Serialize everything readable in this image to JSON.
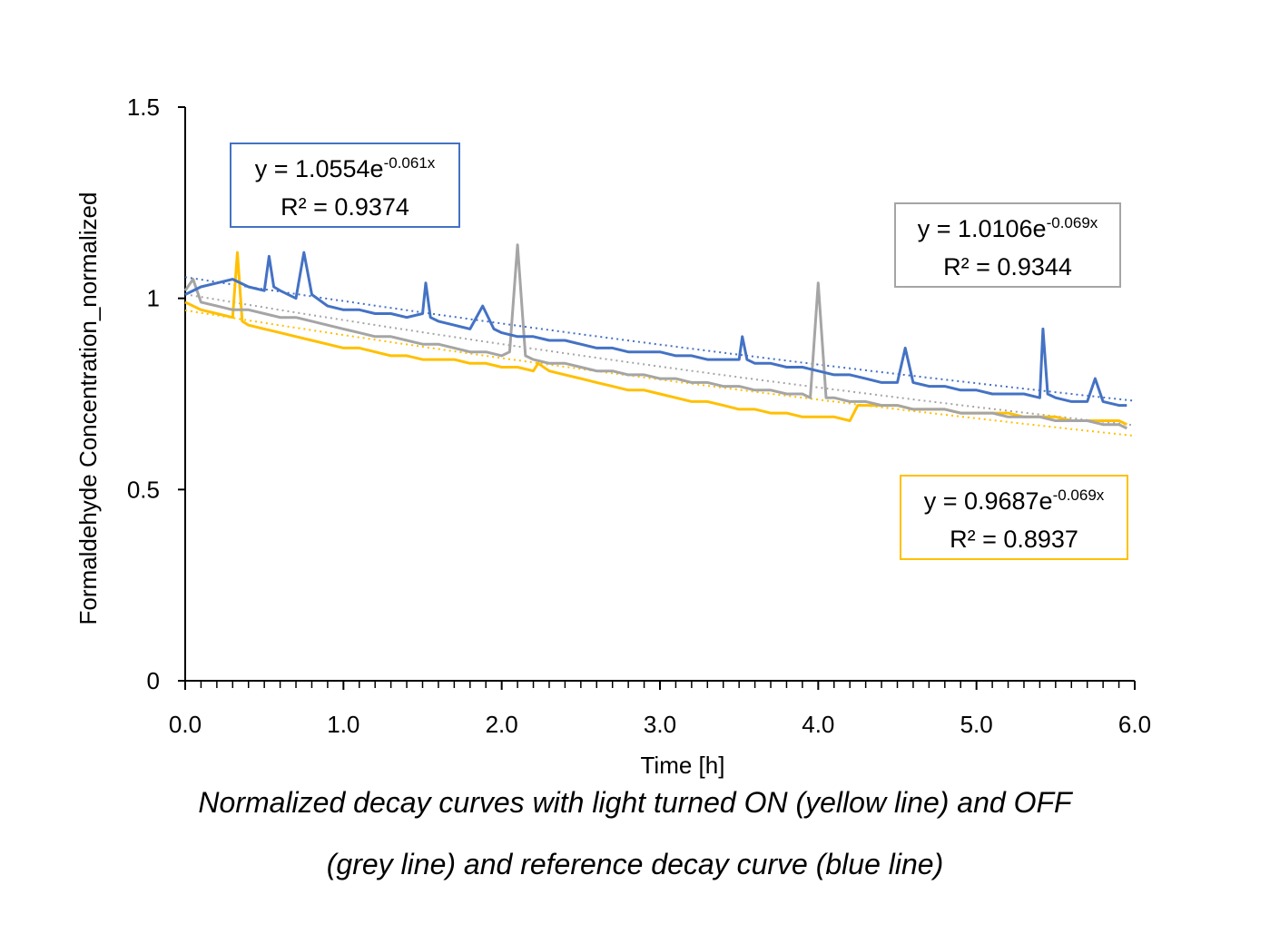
{
  "chart_data": {
    "type": "line",
    "title": "",
    "xlabel": "Time [h]",
    "ylabel": "Formaldehyde Concentration_normalized",
    "xlim": [
      0,
      6
    ],
    "ylim": [
      0,
      1.5
    ],
    "x_ticks": [
      "0.0",
      "1.0",
      "2.0",
      "3.0",
      "4.0",
      "5.0",
      "6.0"
    ],
    "y_ticks": [
      "0",
      "0.5",
      "1",
      "1.5"
    ],
    "grid": false,
    "legend": "none",
    "series": [
      {
        "color": "#4472C4",
        "x": [
          0.0,
          0.1,
          0.2,
          0.3,
          0.4,
          0.5,
          0.53,
          0.56,
          0.6,
          0.7,
          0.75,
          0.8,
          0.9,
          1.0,
          1.1,
          1.2,
          1.3,
          1.4,
          1.5,
          1.52,
          1.55,
          1.6,
          1.7,
          1.8,
          1.88,
          1.95,
          2.0,
          2.1,
          2.2,
          2.3,
          2.4,
          2.5,
          2.6,
          2.7,
          2.8,
          2.9,
          3.0,
          3.1,
          3.2,
          3.3,
          3.4,
          3.5,
          3.52,
          3.55,
          3.6,
          3.7,
          3.8,
          3.9,
          4.0,
          4.1,
          4.2,
          4.3,
          4.4,
          4.5,
          4.55,
          4.6,
          4.7,
          4.8,
          4.9,
          5.0,
          5.1,
          5.2,
          5.3,
          5.4,
          5.42,
          5.45,
          5.5,
          5.6,
          5.7,
          5.75,
          5.8,
          5.9,
          5.95
        ],
        "values": [
          1.01,
          1.03,
          1.04,
          1.05,
          1.03,
          1.02,
          1.11,
          1.03,
          1.02,
          1.0,
          1.12,
          1.01,
          0.98,
          0.97,
          0.97,
          0.96,
          0.96,
          0.95,
          0.96,
          1.04,
          0.95,
          0.94,
          0.93,
          0.92,
          0.98,
          0.92,
          0.91,
          0.9,
          0.9,
          0.89,
          0.89,
          0.88,
          0.87,
          0.87,
          0.86,
          0.86,
          0.86,
          0.85,
          0.85,
          0.84,
          0.84,
          0.84,
          0.9,
          0.84,
          0.83,
          0.83,
          0.82,
          0.82,
          0.81,
          0.8,
          0.8,
          0.79,
          0.78,
          0.78,
          0.87,
          0.78,
          0.77,
          0.77,
          0.76,
          0.76,
          0.75,
          0.75,
          0.75,
          0.74,
          0.92,
          0.75,
          0.74,
          0.73,
          0.73,
          0.79,
          0.73,
          0.72,
          0.72
        ]
      },
      {
        "color": "#A5A5A5",
        "x": [
          0.0,
          0.05,
          0.1,
          0.2,
          0.3,
          0.4,
          0.5,
          0.6,
          0.7,
          0.8,
          0.9,
          1.0,
          1.1,
          1.2,
          1.3,
          1.4,
          1.5,
          1.6,
          1.7,
          1.8,
          1.9,
          2.0,
          2.05,
          2.1,
          2.15,
          2.2,
          2.3,
          2.4,
          2.5,
          2.6,
          2.7,
          2.8,
          2.9,
          3.0,
          3.1,
          3.2,
          3.3,
          3.4,
          3.5,
          3.6,
          3.7,
          3.8,
          3.9,
          3.95,
          4.0,
          4.05,
          4.1,
          4.2,
          4.3,
          4.4,
          4.5,
          4.6,
          4.7,
          4.8,
          4.9,
          5.0,
          5.1,
          5.2,
          5.3,
          5.4,
          5.5,
          5.6,
          5.7,
          5.8,
          5.9,
          5.95
        ],
        "values": [
          1.02,
          1.05,
          0.99,
          0.98,
          0.97,
          0.97,
          0.96,
          0.95,
          0.95,
          0.94,
          0.93,
          0.92,
          0.91,
          0.9,
          0.9,
          0.89,
          0.88,
          0.88,
          0.87,
          0.86,
          0.86,
          0.85,
          0.86,
          1.14,
          0.85,
          0.84,
          0.83,
          0.83,
          0.82,
          0.81,
          0.81,
          0.8,
          0.8,
          0.79,
          0.79,
          0.78,
          0.78,
          0.77,
          0.77,
          0.76,
          0.76,
          0.75,
          0.75,
          0.74,
          1.04,
          0.74,
          0.74,
          0.73,
          0.73,
          0.72,
          0.72,
          0.71,
          0.71,
          0.71,
          0.7,
          0.7,
          0.7,
          0.69,
          0.69,
          0.69,
          0.68,
          0.68,
          0.68,
          0.67,
          0.67,
          0.66
        ]
      },
      {
        "color": "#FFC000",
        "x": [
          0.0,
          0.1,
          0.2,
          0.3,
          0.33,
          0.36,
          0.4,
          0.5,
          0.6,
          0.7,
          0.8,
          0.9,
          1.0,
          1.1,
          1.2,
          1.3,
          1.4,
          1.5,
          1.6,
          1.7,
          1.8,
          1.9,
          2.0,
          2.1,
          2.2,
          2.23,
          2.3,
          2.4,
          2.5,
          2.6,
          2.7,
          2.8,
          2.9,
          3.0,
          3.1,
          3.2,
          3.3,
          3.4,
          3.5,
          3.6,
          3.7,
          3.8,
          3.9,
          4.0,
          4.1,
          4.2,
          4.25,
          4.3,
          4.4,
          4.5,
          4.6,
          4.7,
          4.8,
          4.9,
          5.0,
          5.1,
          5.2,
          5.3,
          5.4,
          5.5,
          5.6,
          5.7,
          5.8,
          5.9,
          5.95
        ],
        "values": [
          0.99,
          0.97,
          0.96,
          0.95,
          1.12,
          0.94,
          0.93,
          0.92,
          0.91,
          0.9,
          0.89,
          0.88,
          0.87,
          0.87,
          0.86,
          0.85,
          0.85,
          0.84,
          0.84,
          0.84,
          0.83,
          0.83,
          0.82,
          0.82,
          0.81,
          0.83,
          0.81,
          0.8,
          0.79,
          0.78,
          0.77,
          0.76,
          0.76,
          0.75,
          0.74,
          0.73,
          0.73,
          0.72,
          0.71,
          0.71,
          0.7,
          0.7,
          0.69,
          0.69,
          0.69,
          0.68,
          0.72,
          0.72,
          0.72,
          0.72,
          0.71,
          0.71,
          0.71,
          0.7,
          0.7,
          0.7,
          0.7,
          0.69,
          0.69,
          0.69,
          0.68,
          0.68,
          0.68,
          0.68,
          0.67
        ]
      }
    ],
    "trendlines": [
      {
        "color": "#4472C4",
        "a": 1.0554,
        "b": -0.061
      },
      {
        "color": "#A5A5A5",
        "a": 1.0106,
        "b": -0.069
      },
      {
        "color": "#FFC000",
        "a": 0.9687,
        "b": -0.069
      }
    ],
    "annotations": {
      "blue": {
        "eq_base": "y = 1.0554e",
        "eq_exp": "-0.061x",
        "r2": "R² = 0.9374",
        "color": "#4472C4"
      },
      "grey": {
        "eq_base": "y = 1.0106e",
        "eq_exp": "-0.069x",
        "r2": "R² = 0.9344",
        "color": "#A5A5A5"
      },
      "yellow": {
        "eq_base": "y = 0.9687e",
        "eq_exp": "-0.069x",
        "r2": "R² = 0.8937",
        "color": "#FFC000"
      }
    }
  },
  "caption": {
    "line1": "Normalized decay curves with light turned ON (yellow line) and OFF",
    "line2": "(grey line) and reference decay curve (blue line)"
  }
}
